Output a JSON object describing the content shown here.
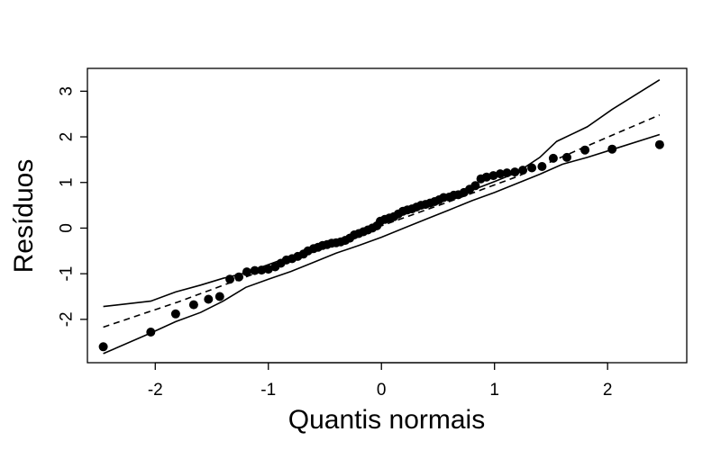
{
  "chart_data": {
    "type": "scatter",
    "title": "",
    "xlabel": "Quantis normais",
    "ylabel": "Resíduos",
    "xlim": [
      -2.6,
      2.7
    ],
    "ylim": [
      -2.95,
      3.5
    ],
    "x_ticks": [
      -2,
      -1,
      0,
      1,
      2
    ],
    "y_ticks": [
      -2,
      -1,
      0,
      1,
      2,
      3
    ],
    "x_tick_labels": [
      "-2",
      "-1",
      "0",
      "1",
      "2"
    ],
    "y_tick_labels": [
      "-2",
      "-1",
      "0",
      "1",
      "2",
      "3"
    ],
    "grid": false,
    "legend": "none",
    "points": {
      "x": [
        -2.46,
        -2.04,
        -1.82,
        -1.66,
        -1.53,
        -1.43,
        -1.34,
        -1.26,
        -1.19,
        -1.12,
        -1.06,
        -1.0,
        -0.94,
        -0.89,
        -0.84,
        -0.79,
        -0.74,
        -0.69,
        -0.65,
        -0.6,
        -0.56,
        -0.52,
        -0.48,
        -0.44,
        -0.4,
        -0.36,
        -0.32,
        -0.28,
        -0.24,
        -0.2,
        -0.16,
        -0.12,
        -0.08,
        -0.04,
        -0.01,
        0.03,
        0.07,
        0.11,
        0.15,
        0.19,
        0.23,
        0.27,
        0.31,
        0.35,
        0.39,
        0.43,
        0.47,
        0.51,
        0.55,
        0.6,
        0.64,
        0.68,
        0.73,
        0.78,
        0.83,
        0.88,
        0.93,
        0.99,
        1.05,
        1.11,
        1.18,
        1.25,
        1.33,
        1.42,
        1.52,
        1.64,
        1.8,
        2.04,
        2.46
      ],
      "y": [
        -2.6,
        -2.28,
        -1.88,
        -1.68,
        -1.56,
        -1.5,
        -1.12,
        -1.07,
        -0.96,
        -0.93,
        -0.92,
        -0.9,
        -0.85,
        -0.77,
        -0.7,
        -0.67,
        -0.62,
        -0.57,
        -0.5,
        -0.45,
        -0.42,
        -0.38,
        -0.36,
        -0.33,
        -0.32,
        -0.3,
        -0.27,
        -0.22,
        -0.15,
        -0.12,
        -0.08,
        -0.04,
        0.0,
        0.05,
        0.15,
        0.19,
        0.22,
        0.25,
        0.31,
        0.37,
        0.4,
        0.42,
        0.46,
        0.5,
        0.52,
        0.55,
        0.58,
        0.62,
        0.67,
        0.68,
        0.72,
        0.73,
        0.78,
        0.85,
        0.93,
        1.08,
        1.12,
        1.15,
        1.19,
        1.21,
        1.23,
        1.27,
        1.32,
        1.35,
        1.53,
        1.55,
        1.71,
        1.73,
        1.83
      ],
      "color": "#000000"
    },
    "reference_line": {
      "style": "dashed",
      "x": [
        -2.46,
        -1.8,
        -1.2,
        -0.6,
        0.0,
        0.6,
        1.2,
        1.8,
        2.46
      ],
      "y": [
        -2.17,
        -1.62,
        -1.07,
        -0.52,
        0.05,
        0.58,
        1.13,
        1.78,
        2.48
      ]
    },
    "envelope_upper": {
      "style": "solid",
      "x": [
        -2.46,
        -2.04,
        -1.82,
        -1.6,
        -1.4,
        -1.2,
        -1.0,
        -0.8,
        -0.6,
        -0.4,
        -0.2,
        0.0,
        0.2,
        0.4,
        0.6,
        0.8,
        1.0,
        1.2,
        1.4,
        1.55,
        1.82,
        2.04,
        2.46
      ],
      "y": [
        -1.72,
        -1.6,
        -1.4,
        -1.25,
        -1.1,
        -0.98,
        -0.8,
        -0.62,
        -0.45,
        -0.28,
        -0.1,
        0.12,
        0.3,
        0.48,
        0.65,
        0.83,
        1.02,
        1.22,
        1.55,
        1.9,
        2.22,
        2.6,
        3.25
      ]
    },
    "envelope_lower": {
      "style": "solid",
      "x": [
        -2.46,
        -2.04,
        -1.82,
        -1.6,
        -1.4,
        -1.2,
        -1.0,
        -0.8,
        -0.6,
        -0.4,
        -0.2,
        0.0,
        0.2,
        0.4,
        0.6,
        0.8,
        1.0,
        1.2,
        1.4,
        1.6,
        1.82,
        2.04,
        2.46
      ],
      "y": [
        -2.75,
        -2.3,
        -2.05,
        -1.85,
        -1.6,
        -1.3,
        -1.12,
        -0.95,
        -0.75,
        -0.55,
        -0.38,
        -0.2,
        0.0,
        0.2,
        0.4,
        0.6,
        0.78,
        0.98,
        1.18,
        1.4,
        1.55,
        1.72,
        2.05
      ]
    }
  }
}
